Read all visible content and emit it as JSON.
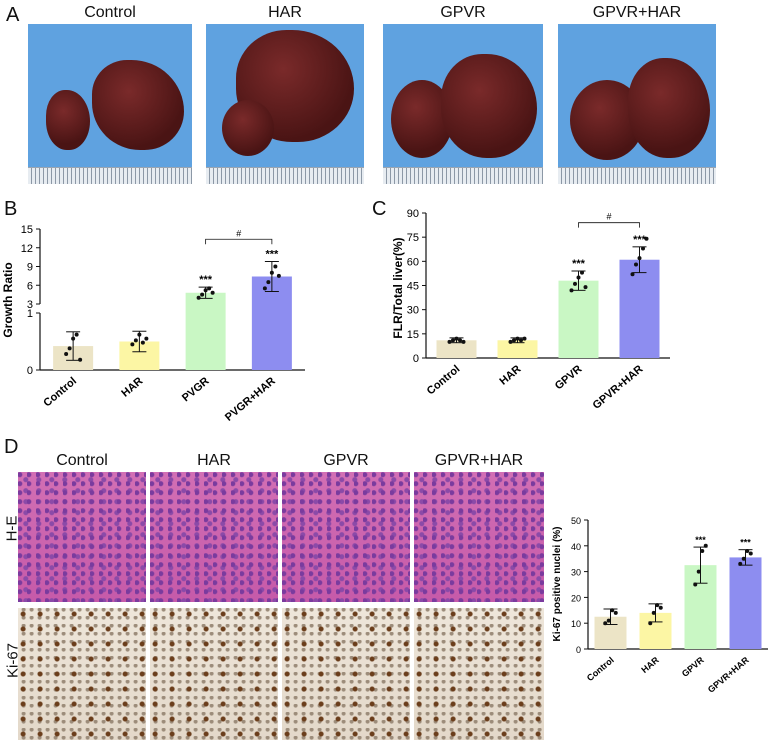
{
  "panels": {
    "A": "A",
    "B": "B",
    "C": "C",
    "D": "D"
  },
  "photos": {
    "labels": [
      "Control",
      "HAR",
      "GPVR",
      "GPVR+HAR"
    ]
  },
  "histology": {
    "columns": [
      "Control",
      "HAR",
      "GPVR",
      "GPVR+HAR"
    ],
    "rows": [
      "H-E",
      "Ki-67"
    ]
  },
  "colors": {
    "Control": "#ece4c6",
    "HAR": "#fcf6a4",
    "GPVR": "#c9f7c4",
    "GPVR+HAR": "#8d8df0"
  },
  "chart_data": [
    {
      "type": "bar",
      "panel": "B",
      "categories": [
        "Control",
        "HAR",
        "PVGR",
        "PVGR+HAR"
      ],
      "values": [
        0.42,
        0.5,
        4.8,
        7.4
      ],
      "errors": [
        0.25,
        0.18,
        0.9,
        2.4
      ],
      "points": [
        [
          0.28,
          0.38,
          0.55,
          0.62,
          0.18
        ],
        [
          0.45,
          0.52,
          0.62,
          0.48,
          0.55
        ],
        [
          4.0,
          4.5,
          5.2,
          5.5,
          4.8
        ],
        [
          5.5,
          6.5,
          8.0,
          9.0,
          7.5
        ]
      ],
      "significance": [
        "",
        "",
        "***",
        "***"
      ],
      "bracket": {
        "from": "PVGR",
        "to": "PVGR+HAR",
        "label": "#"
      },
      "ylabel": "Growth Ratio",
      "yticks_lower": [
        "0",
        "1"
      ],
      "yticks_upper": [
        "3",
        "6",
        "9",
        "12",
        "15"
      ],
      "axis_break": {
        "lower": [
          0,
          1
        ],
        "upper": [
          3,
          15
        ]
      }
    },
    {
      "type": "bar",
      "panel": "C",
      "categories": [
        "Control",
        "HAR",
        "GPVR",
        "GPVR+HAR"
      ],
      "values": [
        11,
        11,
        48,
        61
      ],
      "errors": [
        1.5,
        1.5,
        6,
        8
      ],
      "points": [
        [
          10,
          11,
          12,
          11,
          10
        ],
        [
          10,
          11,
          12,
          11,
          12
        ],
        [
          42,
          46,
          50,
          53,
          44
        ],
        [
          52,
          58,
          62,
          68,
          74
        ]
      ],
      "significance": [
        "",
        "",
        "***",
        "***"
      ],
      "bracket": {
        "from": "GPVR",
        "to": "GPVR+HAR",
        "label": "#"
      },
      "ylabel": "FLR/Total liver(%)",
      "yticks": [
        "0",
        "15",
        "30",
        "45",
        "60",
        "75",
        "90"
      ],
      "ylim": [
        0,
        90
      ]
    },
    {
      "type": "bar",
      "panel": "D",
      "categories": [
        "Control",
        "HAR",
        "GPVR",
        "GPVR+HAR"
      ],
      "values": [
        12.5,
        14,
        32.5,
        35.5
      ],
      "errors": [
        3,
        3.5,
        7,
        3
      ],
      "points": [
        [
          10,
          11,
          15,
          14
        ],
        [
          10,
          14,
          17,
          16
        ],
        [
          25,
          30,
          38,
          40
        ],
        [
          33,
          35,
          38,
          37
        ]
      ],
      "significance": [
        "",
        "",
        "***",
        "***"
      ],
      "ylabel": "Ki-67 positive nuclei (%)",
      "yticks": [
        "0",
        "10",
        "20",
        "30",
        "40",
        "50"
      ],
      "ylim": [
        0,
        50
      ]
    }
  ]
}
